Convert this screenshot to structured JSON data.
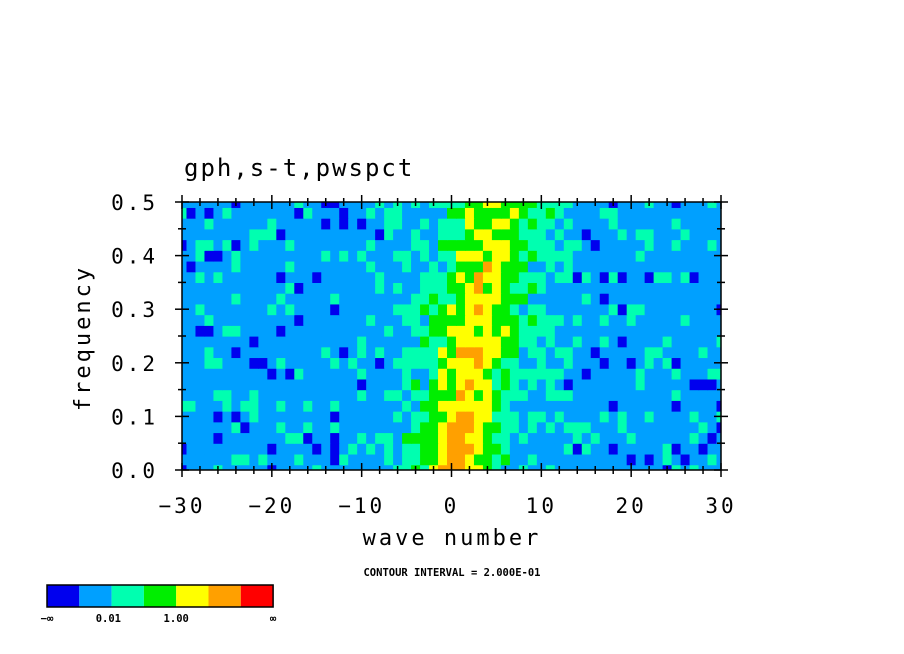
{
  "chart_data": {
    "type": "heatmap",
    "title": "gph,s-t,pwspct",
    "xlabel": "wave number",
    "ylabel": "frequency",
    "xlim": [
      -30,
      30
    ],
    "ylim": [
      0,
      0.5
    ],
    "x_ticks": [
      "−30",
      "−20",
      "−10",
      "0",
      "10",
      "20",
      "30"
    ],
    "y_ticks": [
      "0.0",
      "0.1",
      "0.2",
      "0.3",
      "0.4",
      "0.5"
    ],
    "contour_interval_label": "CONTOUR INTERVAL = 2.000E-01",
    "colorbar": {
      "colors": [
        "#0000ee",
        "#00a0ff",
        "#00ffb0",
        "#00ee00",
        "#ffff00",
        "#ffa000",
        "#ff0000"
      ],
      "labels": [
        "−∞",
        "0.01",
        "1.00",
        "∞"
      ]
    }
  }
}
